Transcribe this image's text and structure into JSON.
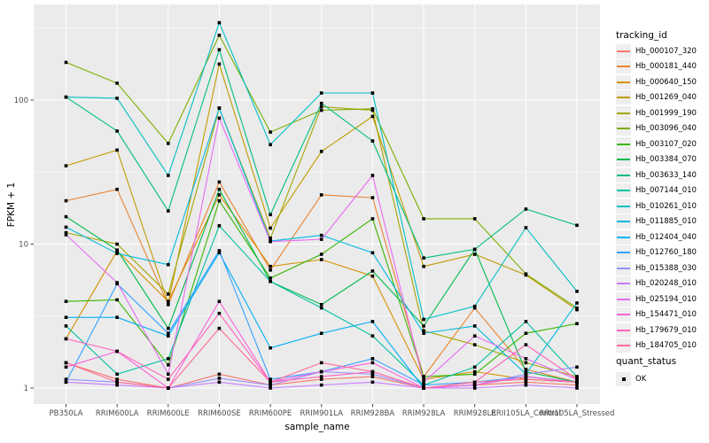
{
  "chart_data": {
    "type": "line",
    "title": "",
    "xlabel": "sample_name",
    "ylabel": "FPKM + 1",
    "y_scale": "log10",
    "ylim": [
      0.75,
      460
    ],
    "y_major_ticks": [
      1,
      10,
      100
    ],
    "y_tick_labels": [
      "1",
      "10",
      "100"
    ],
    "y_minor_ticks": [
      3.1623,
      31.623,
      316.23
    ],
    "grid": "on",
    "legend_position": "right",
    "legend_title": "tracking_id",
    "point_marker": "filled-black-square",
    "quant_status": {
      "title": "quant_status",
      "items": [
        "OK"
      ]
    },
    "panel_bg": "#EBEBEB",
    "grid_color": "#FFFFFF",
    "tick_label_color": "#4D4D4D",
    "marker_color": "#000000",
    "categories": [
      "PB350LA",
      "RRIM600LA",
      "RRIM600LE",
      "RRIM600SE",
      "RRIM600PE",
      "RRIM901LA",
      "RRIM928BA",
      "RRIM928LA",
      "RRIM928LE",
      "RRII105LA_Control",
      "RRII105LA_Stressed"
    ],
    "series": [
      {
        "name": "Hb_000107_320",
        "color": "#F8766D",
        "values": [
          1.5,
          1.15,
          1.0,
          1.25,
          1.05,
          1.15,
          1.2,
          1.0,
          1.05,
          1.1,
          1.05
        ]
      },
      {
        "name": "Hb_000181_440",
        "color": "#EA8331",
        "values": [
          20,
          24,
          3.8,
          27,
          6.6,
          22,
          21,
          1.2,
          3.6,
          1.35,
          1.1
        ]
      },
      {
        "name": "Hb_000640_150",
        "color": "#D89000",
        "values": [
          2.2,
          9.0,
          4.0,
          22,
          7.0,
          7.8,
          6.0,
          1.15,
          1.3,
          1.15,
          1.1
        ]
      },
      {
        "name": "Hb_001269_040",
        "color": "#C09B00",
        "values": [
          35,
          45,
          3.9,
          178,
          12.9,
          44,
          77,
          7.0,
          8.5,
          6.1,
          3.5
        ]
      },
      {
        "name": "Hb_001999_190",
        "color": "#A3A500",
        "values": [
          12,
          10,
          4.5,
          88,
          11,
          90,
          85,
          2.5,
          2.0,
          1.5,
          1.2
        ]
      },
      {
        "name": "Hb_003096_040",
        "color": "#7CAE00",
        "values": [
          183,
          131,
          50,
          282,
          60,
          85,
          87,
          15,
          15,
          6.2,
          3.6
        ]
      },
      {
        "name": "Hb_003107_020",
        "color": "#39B600",
        "values": [
          4.0,
          4.1,
          1.45,
          20,
          5.8,
          8.5,
          15,
          1.2,
          1.25,
          2.4,
          2.8
        ]
      },
      {
        "name": "Hb_003384_070",
        "color": "#00BB4E",
        "values": [
          15.5,
          9.1,
          2.6,
          24,
          5.5,
          3.8,
          6.5,
          2.7,
          9.2,
          1.3,
          1.1
        ]
      },
      {
        "name": "Hb_003633_140",
        "color": "#00BF7D",
        "values": [
          105,
          61,
          17,
          224,
          16,
          95,
          52,
          8.0,
          9.2,
          17.5,
          13.5
        ]
      },
      {
        "name": "Hb_007144_010",
        "color": "#00C1A3",
        "values": [
          2.7,
          1.25,
          1.6,
          13.4,
          5.5,
          3.6,
          2.3,
          1.05,
          1.4,
          2.9,
          1.2
        ]
      },
      {
        "name": "Hb_010261_010",
        "color": "#00BFC4",
        "values": [
          105,
          103,
          30,
          345,
          49,
          112,
          112,
          3.0,
          3.7,
          13,
          4.7
        ]
      },
      {
        "name": "Hb_011885_010",
        "color": "#00BAE0",
        "values": [
          13.1,
          8.6,
          7.2,
          88,
          10.5,
          11.5,
          8.7,
          2.4,
          2.7,
          1.25,
          3.9
        ]
      },
      {
        "name": "Hb_012404_040",
        "color": "#00B0F6",
        "values": [
          3.1,
          3.1,
          2.3,
          8.7,
          1.9,
          2.4,
          2.9,
          1.0,
          1.05,
          1.2,
          1.1
        ]
      },
      {
        "name": "Hb_012760_180",
        "color": "#35A2FF",
        "values": [
          1.1,
          5.3,
          2.4,
          9.0,
          1.15,
          1.3,
          1.6,
          1.05,
          1.1,
          1.2,
          1.1
        ]
      },
      {
        "name": "Hb_015388_030",
        "color": "#9590FF",
        "values": [
          1.15,
          1.1,
          1.0,
          1.17,
          1.05,
          1.3,
          1.25,
          1.0,
          1.05,
          1.25,
          1.4
        ]
      },
      {
        "name": "Hb_020248_010",
        "color": "#C77CFF",
        "values": [
          1.1,
          1.05,
          1.0,
          1.1,
          1.0,
          1.05,
          1.1,
          1.0,
          1.0,
          1.05,
          1.0
        ]
      },
      {
        "name": "Hb_025194_010",
        "color": "#E76BF3",
        "values": [
          11.6,
          5.4,
          1.25,
          75,
          10.4,
          10.8,
          30,
          1.1,
          2.3,
          1.6,
          1.15
        ]
      },
      {
        "name": "Hb_154471_010",
        "color": "#FA62DB",
        "values": [
          1.4,
          1.8,
          1.0,
          4.0,
          1.1,
          1.3,
          1.5,
          1.0,
          1.05,
          1.2,
          1.1
        ]
      },
      {
        "name": "Hb_179679_010",
        "color": "#FF62BC",
        "values": [
          2.2,
          1.8,
          1.15,
          3.3,
          1.1,
          1.2,
          1.3,
          1.0,
          1.1,
          2.0,
          1.15
        ]
      },
      {
        "name": "Hb_184705_010",
        "color": "#FF6A98",
        "values": [
          1.5,
          1.1,
          1.0,
          2.6,
          1.1,
          1.5,
          1.3,
          1.0,
          1.1,
          1.15,
          1.1
        ]
      }
    ]
  }
}
